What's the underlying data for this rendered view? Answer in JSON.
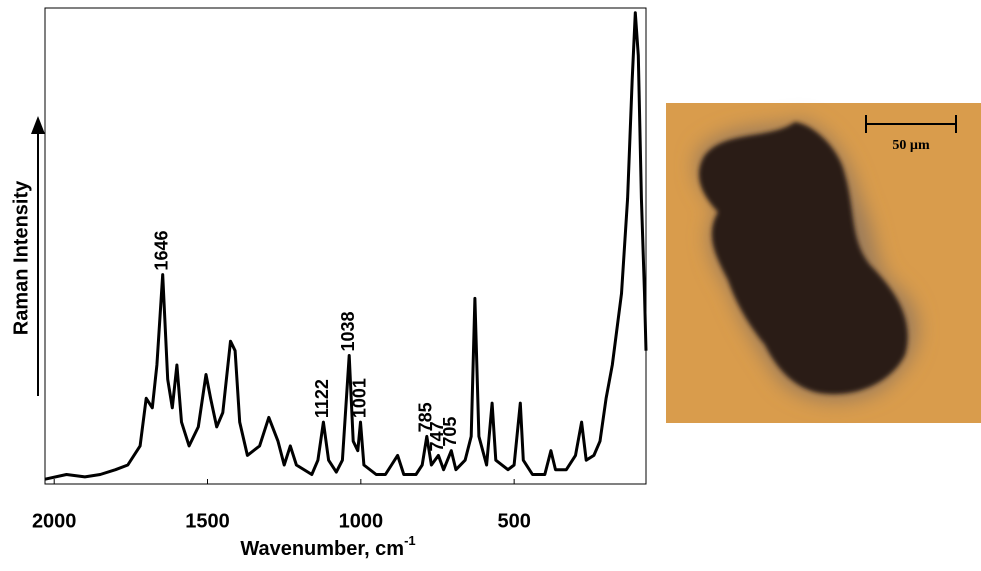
{
  "chart_data": {
    "type": "line",
    "x_label": "Wavenumber, cm",
    "x_label_sup": "-1",
    "y_label": "Raman Intensity",
    "xlim": [
      2030,
      70
    ],
    "ylim": [
      0,
      100
    ],
    "xticks": [
      2000,
      1500,
      1000,
      500
    ],
    "color": "#000000",
    "peaks": [
      1646,
      1122,
      1038,
      1001,
      785,
      747,
      705
    ],
    "x": [
      2030,
      1960,
      1900,
      1850,
      1800,
      1760,
      1720,
      1700,
      1680,
      1665,
      1646,
      1630,
      1615,
      1600,
      1585,
      1560,
      1530,
      1505,
      1490,
      1470,
      1450,
      1425,
      1410,
      1395,
      1370,
      1330,
      1300,
      1270,
      1250,
      1230,
      1210,
      1160,
      1140,
      1122,
      1105,
      1080,
      1060,
      1038,
      1025,
      1010,
      1001,
      990,
      950,
      920,
      900,
      880,
      860,
      820,
      800,
      785,
      770,
      747,
      730,
      705,
      690,
      660,
      640,
      628,
      615,
      590,
      572,
      560,
      520,
      500,
      480,
      470,
      440,
      400,
      380,
      365,
      330,
      300,
      280,
      265,
      240,
      220,
      200,
      180,
      150,
      130,
      115,
      105,
      95,
      85,
      75,
      70
    ],
    "values": [
      1,
      2,
      1.5,
      2,
      3,
      4,
      8,
      18,
      16,
      25,
      44,
      22,
      16,
      25,
      13,
      8,
      12,
      23,
      18,
      12,
      15,
      30,
      28,
      13,
      6,
      8,
      14,
      9,
      4,
      8,
      4,
      2,
      5,
      13,
      5,
      2.5,
      5,
      27,
      9,
      7,
      13,
      4,
      2,
      2,
      4,
      6,
      2,
      2,
      4,
      10,
      4,
      6,
      3,
      7,
      3,
      5,
      10,
      39,
      10,
      4,
      17,
      5,
      3,
      4,
      17,
      5,
      2,
      2,
      7,
      3,
      3,
      6,
      13,
      5,
      6,
      9,
      18,
      25,
      40,
      60,
      85,
      99,
      90,
      60,
      40,
      28
    ]
  },
  "image": {
    "scale_bar_label": "50 µm"
  }
}
